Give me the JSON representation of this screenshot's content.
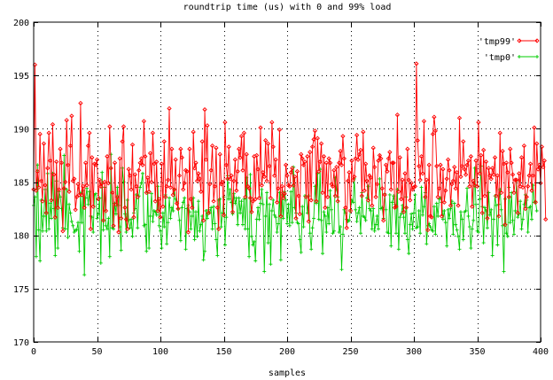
{
  "chart_data": {
    "type": "line",
    "title": "roundtrip time (us) with 0 and 99% load",
    "xlabel": "samples",
    "ylabel": "",
    "xlim": [
      0,
      400
    ],
    "ylim": [
      170,
      200
    ],
    "x_ticks": [
      0,
      50,
      100,
      150,
      200,
      250,
      300,
      350,
      400
    ],
    "y_ticks": [
      170,
      175,
      180,
      185,
      190,
      195,
      200
    ],
    "x_tick_labels": [
      "0",
      "50",
      "100",
      "150",
      "200",
      "250",
      "300",
      "350",
      "400"
    ],
    "y_tick_labels": [
      "170",
      "175",
      "180",
      "185",
      "190",
      "195",
      "200"
    ],
    "grid": true,
    "legend_position": "top-right",
    "series": [
      {
        "name": "'tmp99'",
        "color": "#ff0000",
        "marker": "diamond",
        "values": [
          184.3,
          196.0,
          184.2,
          186.0,
          184.5,
          189.5,
          185.1,
          183.2,
          188.6,
          184.7,
          182.1,
          186.3,
          189.6,
          187.0,
          183.3,
          190.4,
          185.7,
          181.7,
          186.9,
          182.6,
          184.3,
          188.1,
          186.8,
          180.4,
          184.4,
          185.0,
          190.8,
          186.6,
          184.1,
          188.4,
          191.2,
          185.1,
          185.3,
          182.4,
          183.6,
          184.8,
          183.8,
          192.4,
          183.8,
          184.6,
          182.6,
          186.8,
          184.7,
          188.4,
          189.6,
          180.6,
          187.3,
          182.7,
          186.7,
          186.6,
          187.1,
          183.4,
          185.2,
          184.6,
          184.9,
          181.4,
          185.0,
          182.3,
          187.4,
          184.9,
          190.2,
          186.3,
          184.0,
          180.9,
          186.8,
          182.9,
          183.6,
          180.3,
          187.2,
          181.6,
          188.8,
          190.2,
          182.6,
          181.5,
          180.6,
          186.2,
          185.6,
          184.3,
          188.5,
          181.7,
          185.7,
          184.6,
          183.6,
          186.1,
          186.8,
          187.2,
          186.6,
          190.7,
          187.4,
          184.0,
          185.4,
          184.1,
          187.7,
          185.0,
          189.6,
          186.7,
          183.2,
          186.9,
          182.3,
          183.4,
          181.7,
          186.7,
          182.7,
          188.8,
          183.6,
          184.6,
          185.2,
          191.9,
          184.5,
          188.1,
          183.8,
          184.3,
          187.1,
          183.0,
          182.5,
          185.6,
          188.1,
          187.3,
          184.3,
          184.9,
          186.1,
          186.0,
          180.3,
          188.1,
          183.4,
          182.6,
          189.7,
          186.3,
          186.8,
          185.1,
          185.8,
          185.3,
          184.1,
          188.8,
          181.4,
          191.8,
          187.1,
          190.3,
          182.1,
          184.8,
          186.1,
          188.4,
          183.2,
          184.6,
          188.2,
          182.6,
          180.6,
          187.6,
          184.8,
          185.0,
          181.9,
          190.6,
          186.6,
          185.3,
          188.3,
          185.3,
          185.6,
          182.2,
          185.1,
          187.1,
          184.2,
          186.0,
          188.1,
          187.3,
          189.3,
          186.1,
          189.6,
          183.6,
          187.6,
          184.6,
          184.4,
          183.5,
          182.2,
          183.2,
          187.4,
          183.4,
          187.5,
          186.2,
          183.5,
          190.1,
          184.7,
          185.9,
          185.5,
          188.9,
          185.1,
          188.6,
          186.5,
          183.5,
          190.6,
          188.3,
          185.6,
          187.1,
          183.1,
          184.4,
          189.9,
          181.8,
          184.6,
          183.5,
          183.9,
          186.6,
          185.6,
          184.7,
          184.6,
          185.9,
          186.3,
          184.7,
          185.5,
          181.6,
          186.0,
          183.7,
          182.0,
          187.6,
          187.2,
          186.6,
          186.9,
          183.6,
          187.4,
          181.3,
          187.8,
          183.3,
          188.3,
          189.0,
          189.8,
          183.2,
          189.1,
          186.0,
          186.9,
          188.6,
          184.0,
          187.4,
          182.6,
          186.8,
          183.6,
          187.2,
          186.8,
          184.8,
          184.6,
          186.1,
          183.7,
          186.4,
          183.2,
          186.8,
          187.9,
          186.6,
          189.3,
          187.2,
          182.6,
          180.7,
          185.1,
          185.9,
          182.3,
          187.0,
          185.2,
          185.5,
          187.2,
          189.4,
          187.1,
          187.6,
          188.0,
          183.7,
          189.7,
          184.2,
          186.7,
          185.1,
          183.3,
          185.6,
          185.4,
          182.8,
          188.2,
          186.4,
          183.6,
          184.8,
          187.0,
          187.5,
          187.2,
          184.4,
          181.4,
          183.8,
          186.6,
          186.0,
          187.2,
          187.8,
          184.3,
          186.8,
          186.8,
          182.6,
          182.7,
          191.3,
          184.1,
          187.3,
          183.4,
          185.2,
          182.2,
          185.8,
          182.6,
          188.1,
          185.2,
          183.3,
          184.9,
          184.3,
          184.5,
          184.6,
          196.1,
          188.9,
          186.5,
          185.2,
          187.4,
          185.8,
          190.7,
          183.6,
          185.2,
          180.5,
          186.6,
          181.8,
          181.7,
          189.5,
          191.1,
          189.8,
          186.5,
          183.6,
          184.4,
          186.6,
          181.8,
          186.2,
          183.1,
          184.2,
          185.3,
          187.1,
          186.1,
          182.8,
          184.8,
          185.1,
          186.4,
          184.4,
          185.9,
          182.8,
          191.0,
          185.5,
          186.5,
          188.8,
          186.2,
          185.7,
          186.6,
          187.0,
          184.6,
          187.4,
          182.7,
          185.1,
          184.7,
          187.0,
          184.6,
          190.6,
          185.8,
          187.5,
          182.1,
          188.0,
          183.7,
          186.9,
          181.6,
          186.3,
          185.6,
          185.3,
          186.3,
          185.7,
          187.3,
          183.7,
          185.6,
          181.8,
          189.6,
          184.0,
          187.9,
          186.7,
          181.0,
          186.8,
          185.9,
          183.6,
          188.1,
          186.8,
          185.7,
          184.0,
          185.2,
          185.2,
          182.1,
          185.8,
          184.6,
          187.3,
          184.5,
          188.4,
          182.5,
          183.6,
          184.6,
          185.6,
          186.7,
          184.2,
          185.6,
          190.1,
          183.1,
          188.6,
          186.2,
          186.6,
          184.9,
          188.3,
          186.4,
          187.0,
          181.5
        ]
      },
      {
        "name": "'tmp0'",
        "color": "#00cc00",
        "marker": "plus",
        "values": [
          182.8,
          183.6,
          178.0,
          186.6,
          180.5,
          177.6,
          183.3,
          180.4,
          181.8,
          184.3,
          180.4,
          185.8,
          180.6,
          183.0,
          181.6,
          185.8,
          182.5,
          178.1,
          185.1,
          178.8,
          184.1,
          183.6,
          182.5,
          180.7,
          187.5,
          180.6,
          184.3,
          179.8,
          182.9,
          182.1,
          181.3,
          180.9,
          180.3,
          180.5,
          180.5,
          181.2,
          178.5,
          184.0,
          181.2,
          184.2,
          176.3,
          183.5,
          184.4,
          182.9,
          184.1,
          181.8,
          181.7,
          180.3,
          183.8,
          183.9,
          181.6,
          182.0,
          183.5,
          177.4,
          185.9,
          180.5,
          184.5,
          180.9,
          180.6,
          181.6,
          178.0,
          187.6,
          180.7,
          180.6,
          183.0,
          182.0,
          184.5,
          182.8,
          180.8,
          178.6,
          186.3,
          185.0,
          182.0,
          180.3,
          183.3,
          181.4,
          180.7,
          181.5,
          179.9,
          182.1,
          182.5,
          183.8,
          180.7,
          183.7,
          184.5,
          184.9,
          185.8,
          180.9,
          181.0,
          178.5,
          184.0,
          178.8,
          181.8,
          183.9,
          181.3,
          182.3,
          182.2,
          181.9,
          184.6,
          180.9,
          180.4,
          178.8,
          182.1,
          180.8,
          183.8,
          179.2,
          181.2,
          183.5,
          181.6,
          182.6,
          182.3,
          184.3,
          183.4,
          183.2,
          182.5,
          181.4,
          179.5,
          182.6,
          183.1,
          183.5,
          178.7,
          182.5,
          182.8,
          182.2,
          180.6,
          181.8,
          183.5,
          179.6,
          182.2,
          179.9,
          183.2,
          180.4,
          181.0,
          181.8,
          177.7,
          178.5,
          182.3,
          181.6,
          182.4,
          182.1,
          182.6,
          180.6,
          182.7,
          181.1,
          179.6,
          178.1,
          183.3,
          183.4,
          180.8,
          182.1,
          183.6,
          179.1,
          181.7,
          185.6,
          183.4,
          184.3,
          183.1,
          182.0,
          183.9,
          183.0,
          183.5,
          181.0,
          183.5,
          182.1,
          183.2,
          181.0,
          183.4,
          180.6,
          185.4,
          180.6,
          178.0,
          185.7,
          179.9,
          179.1,
          179.4,
          177.6,
          181.5,
          182.6,
          181.5,
          183.0,
          184.3,
          182.9,
          176.6,
          181.8,
          184.0,
          179.3,
          182.9,
          177.3,
          182.3,
          183.3,
          181.9,
          181.7,
          180.3,
          181.1,
          184.0,
          177.7,
          183.8,
          181.6,
          184.1,
          183.3,
          181.1,
          182.9,
          180.9,
          184.1,
          181.2,
          186.4,
          182.6,
          182.1,
          181.2,
          181.1,
          179.6,
          178.4,
          182.7,
          180.8,
          183.7,
          183.7,
          182.1,
          183.7,
          180.2,
          178.7,
          180.7,
          181.6,
          184.6,
          183.0,
          185.8,
          181.5,
          186.2,
          181.4,
          178.3,
          182.2,
          181.8,
          180.3,
          182.6,
          181.1,
          184.2,
          182.4,
          180.2,
          180.4,
          185.4,
          184.3,
          183.6,
          180.3,
          180.8,
          176.8,
          180.1,
          182.4,
          182.1,
          181.5,
          181.3,
          181.4,
          182.4,
          183.3,
          183.1,
          185.3,
          182.4,
          181.3,
          182.1,
          182.6,
          180.2,
          184.0,
          181.8,
          181.7,
          181.4,
          183.5,
          184.6,
          182.5,
          182.3,
          180.6,
          182.5,
          180.4,
          181.0,
          181.8,
          180.6,
          185.3,
          182.5,
          182.6,
          181.6,
          183.9,
          182.4,
          180.3,
          180.2,
          183.8,
          179.0,
          183.1,
          183.7,
          182.9,
          180.2,
          184.3,
          178.7,
          181.7,
          182.0,
          182.8,
          181.7,
          180.2,
          183.6,
          179.6,
          178.3,
          181.0,
          182.0,
          180.6,
          182.1,
          183.8,
          180.7,
          180.8,
          182.3,
          180.2,
          184.5,
          181.9,
          182.7,
          184.0,
          179.2,
          180.9,
          181.1,
          180.8,
          180.5,
          180.4,
          182.7,
          180.1,
          183.0,
          181.8,
          183.4,
          183.5,
          183.1,
          181.5,
          182.3,
          181.2,
          179.0,
          182.4,
          181.6,
          182.5,
          183.2,
          180.1,
          183.0,
          181.0,
          180.5,
          179.9,
          178.7,
          182.2,
          181.5,
          179.6,
          182.2,
          182.3,
          184.4,
          181.8,
          180.8,
          178.8,
          180.6,
          181.4,
          186.3,
          182.9,
          180.4,
          180.3,
          183.4,
          186.5,
          182.7,
          179.3,
          182.6,
          182.3,
          180.7,
          184.0,
          181.9,
          182.4,
          178.1,
          181.5,
          183.7,
          182.8,
          179.1,
          182.9,
          184.3,
          182.4,
          180.9,
          176.6,
          183.4,
          180.2,
          179.9,
          184.5,
          181.2,
          184.0,
          181.4,
          180.1,
          182.3,
          185.1,
          181.7,
          182.0,
          183.2,
          180.6,
          181.5,
          182.9,
          183.8,
          183.3,
          180.3,
          182.6,
          182.7,
          181.5,
          184.7,
          183.1,
          183.2,
          182.3
        ]
      }
    ]
  }
}
